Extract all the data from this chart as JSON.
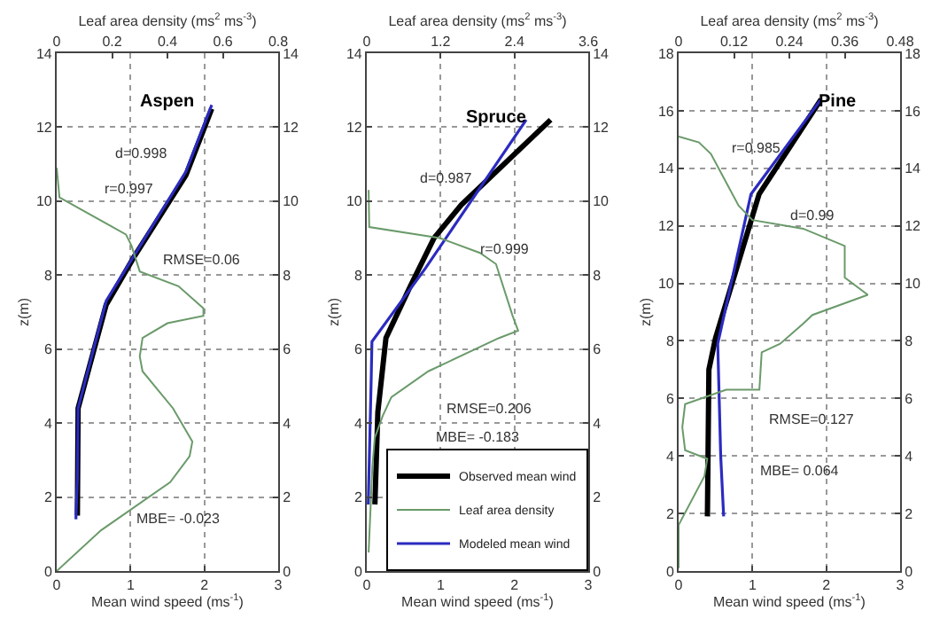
{
  "chart_data": [
    {
      "type": "line",
      "title": "Aspen",
      "xlabel": "Mean wind speed (ms$^{-1}$)",
      "x2label": "Leaf area density (ms$^{2}$ ms$^{-3}$)",
      "ylabel": "z(m)",
      "xlim": [
        0,
        3
      ],
      "xticks": [
        0,
        1,
        2,
        3
      ],
      "x2lim": [
        0,
        0.8
      ],
      "x2ticks": [
        0,
        0.2,
        0.4,
        0.6,
        0.8
      ],
      "ylim": [
        0,
        14
      ],
      "yticks": [
        0,
        2,
        4,
        6,
        8,
        10,
        12,
        14
      ],
      "y2lim": [
        0,
        14
      ],
      "y2ticks": [
        0,
        2,
        4,
        6,
        8,
        10,
        12,
        14
      ],
      "grid": true,
      "legend": false,
      "line_style": "solid",
      "marker": "none",
      "annotations": [
        "d=0.998",
        "r=0.997",
        "RMSE=0.06",
        "MBE= -0.023"
      ],
      "series": [
        {
          "color": "#6a9a6a",
          "axis": "x2",
          "x": [
            0,
            0.16,
            0.41,
            0.48,
            0.49,
            0.42,
            0.31,
            0.3,
            0.31,
            0.4,
            0.53,
            0.53,
            0.44,
            0.3,
            0.27,
            0.25,
            0.01,
            0
          ],
          "values": [
            0,
            1.1,
            2.4,
            3.1,
            3.5,
            4.4,
            5.4,
            5.8,
            6.3,
            6.7,
            6.9,
            7.1,
            7.7,
            8.1,
            8.8,
            9.1,
            10.1,
            10.9
          ]
        },
        {
          "color": "#000000",
          "x": [
            0.28,
            0.29,
            0.67,
            1.05,
            1.75,
            2.1
          ],
          "values": [
            1.5,
            4.4,
            7.2,
            8.5,
            10.7,
            12.5
          ]
        },
        {
          "color": "#2b2bc0",
          "x": [
            0.26,
            0.28,
            0.29,
            0.67,
            1.75,
            2.1
          ],
          "values": [
            1.4,
            2.5,
            4.4,
            7.3,
            10.8,
            12.6
          ]
        }
      ]
    },
    {
      "type": "line",
      "title": "Spruce",
      "xlabel": "Mean wind speed (ms$^{-1}$)",
      "x2label": "Leaf area density (ms$^{2}$ ms$^{-3}$)",
      "ylabel": "z(m)",
      "xlim": [
        0,
        3
      ],
      "xticks": [
        0,
        1,
        2,
        3
      ],
      "x2lim": [
        0,
        3.6
      ],
      "x2ticks": [
        0,
        1.2,
        2.4,
        3.6
      ],
      "ylim": [
        0,
        14
      ],
      "yticks": [
        0,
        2,
        4,
        6,
        8,
        10,
        12,
        14
      ],
      "y2lim": [
        0,
        14
      ],
      "y2ticks": [
        0,
        2,
        4,
        6,
        8,
        10,
        12,
        14
      ],
      "grid": true,
      "legend": "bottom right",
      "line_style": "solid",
      "marker": "none",
      "annotations": [
        "d=0.987",
        "r=0.999",
        "RMSE=0.206",
        "MBE= -0.183"
      ],
      "series": [
        {
          "name": "Observed mean wind",
          "color": "#000000",
          "x": [
            0.11,
            0.15,
            0.26,
            0.59,
            0.91,
            1.28,
            2.49
          ],
          "values": [
            1.8,
            4.3,
            6.3,
            7.7,
            9,
            9.9,
            12.2
          ]
        },
        {
          "name": "Leaf area density",
          "color": "#6a9a6a",
          "axis": "x2",
          "x": [
            0.03,
            0.09,
            0.13,
            0.26,
            0.4,
            1.0,
            2.15,
            2.46,
            2.37,
            2.1,
            1.84,
            1.19,
            0.04,
            0.03
          ],
          "values": [
            0.5,
            2.8,
            3.6,
            4.2,
            4.7,
            5.4,
            6.3,
            6.5,
            6.9,
            8.3,
            8.6,
            9,
            9.3,
            10.3
          ]
        },
        {
          "name": "Modeled mean wind",
          "color": "#2b2bc0",
          "x": [
            0.02,
            0.06,
            0.07,
            0.8,
            2.16
          ],
          "values": [
            1.8,
            5.2,
            6.2,
            8.2,
            12.2
          ]
        }
      ]
    },
    {
      "type": "line",
      "title": "Pine",
      "xlabel": "Mean wind speed (ms$^{-1}$)",
      "x2label": "Leaf area density (ms$^{2}$ ms$^{-3}$)",
      "ylabel": "z(m)",
      "xlim": [
        0,
        3
      ],
      "xticks": [
        0,
        1,
        2,
        3
      ],
      "x2lim": [
        0,
        0.48
      ],
      "x2ticks": [
        0,
        0.12,
        0.24,
        0.36,
        0.48
      ],
      "ylim": [
        0,
        18
      ],
      "yticks": [
        0,
        2,
        4,
        6,
        8,
        10,
        12,
        14,
        16,
        18
      ],
      "y2lim": [
        0,
        18
      ],
      "y2ticks": [
        0,
        2,
        4,
        6,
        8,
        10,
        12,
        14,
        16,
        18
      ],
      "grid": true,
      "legend": false,
      "line_style": "solid",
      "marker": "none",
      "annotations": [
        "r=0.985",
        "d=0.99",
        "RMSE=0.127",
        "MBE= 0.064"
      ],
      "series": [
        {
          "color": "#6a9a6a",
          "axis": "x2",
          "x": [
            0,
            0,
            0.056,
            0.062,
            0.014,
            0.008,
            0.014,
            0.103,
            0.175,
            0.18,
            0.22,
            0.27,
            0.29,
            0.41,
            0.36,
            0.36,
            0.27,
            0.16,
            0.13,
            0.1,
            0.07,
            0.044,
            0
          ],
          "values": [
            0.1,
            1.6,
            3.3,
            3.9,
            4.2,
            5,
            5.8,
            6.3,
            6.3,
            7.6,
            7.9,
            8.6,
            8.9,
            9.6,
            10.2,
            11.3,
            11.9,
            12.2,
            12.7,
            13.6,
            14.5,
            14.9,
            15.1
          ]
        },
        {
          "color": "#000000",
          "x": [
            0.39,
            0.41,
            0.5,
            1.09,
            1.93
          ],
          "values": [
            1.9,
            7,
            8.1,
            13.1,
            16.4
          ]
        },
        {
          "color": "#2b2bc0",
          "x": [
            0.61,
            0.57,
            0.53,
            0.98,
            1.93
          ],
          "values": [
            1.9,
            4,
            7.9,
            13.1,
            16.4
          ]
        }
      ]
    }
  ]
}
